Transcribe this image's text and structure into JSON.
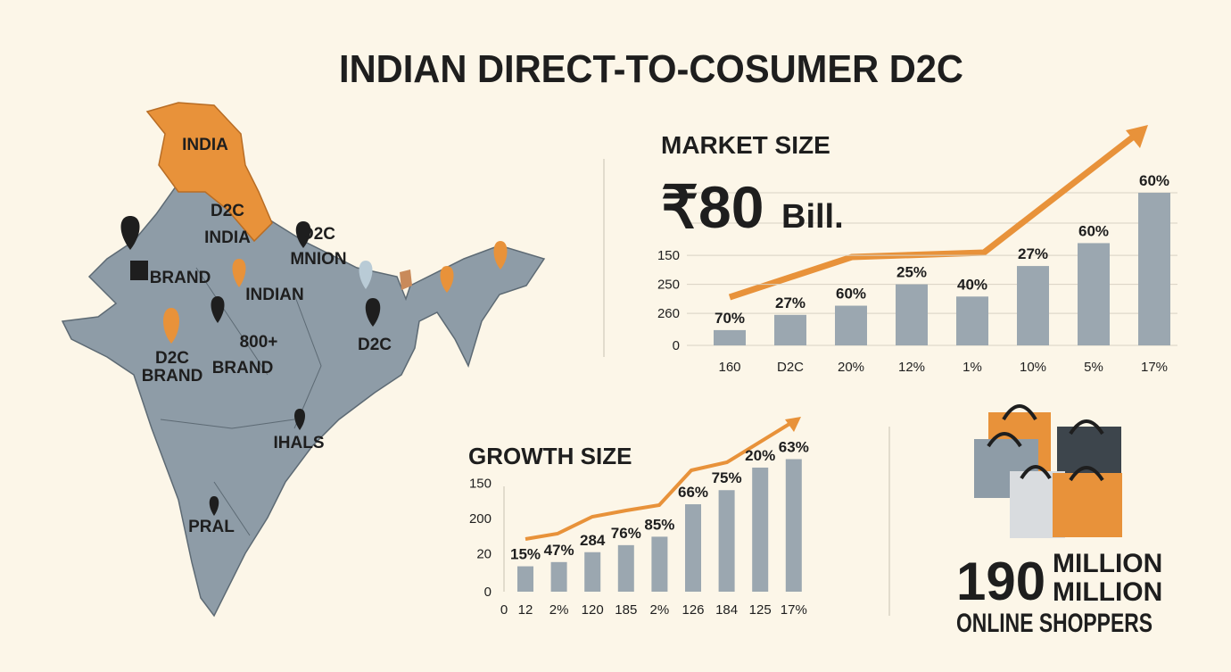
{
  "title": "INDIAN  DIRECT-TO-COSUMER  D2C",
  "map": {
    "labels": [
      "INDIA",
      "D2C",
      "INDIA",
      "BRAND",
      "D2C",
      "MNION",
      "INDIAN",
      "800+",
      "BRAND",
      "D2C",
      "BRAND",
      "D2C",
      "IHALS",
      "PRAL"
    ]
  },
  "chart_data": [
    {
      "type": "bar",
      "title": "MARKET SIZE",
      "headline": "₹80",
      "headline_unit": "Bill.",
      "categories": [
        "160",
        "D2C",
        "20%",
        "12%",
        "1%",
        "10%",
        "5%",
        "17%"
      ],
      "values": [
        10,
        20,
        26,
        40,
        32,
        52,
        67,
        100
      ],
      "bar_labels": [
        "70%",
        "27%",
        "60%",
        "25%",
        "40%",
        "27%",
        "60%",
        "60%"
      ],
      "color": "#9ba7b0",
      "ylim": [
        0,
        100
      ],
      "yticks": [
        {
          "value": 59,
          "label": "150"
        },
        {
          "value": 40,
          "label": "250"
        },
        {
          "value": 21,
          "label": "260"
        },
        0
      ],
      "grid": true
    },
    {
      "type": "bar",
      "title": "GROWTH SIZE",
      "x_origin_label": "0",
      "categories": [
        "12",
        "2%",
        "120",
        "185",
        "2%",
        "126",
        "184",
        "125",
        "17%"
      ],
      "values": [
        18,
        21,
        28,
        33,
        39,
        62,
        72,
        88,
        94
      ],
      "bar_labels": [
        "15%",
        "47%",
        "284",
        "76%",
        "85%",
        "66%",
        "75%",
        "20%",
        "63%"
      ],
      "color": "#9ba7b0",
      "ylim": [
        0,
        100
      ],
      "yticks": [
        {
          "value": 77,
          "label": "150"
        },
        {
          "value": 52,
          "label": "200"
        },
        {
          "value": 27,
          "label": "20"
        },
        0
      ],
      "grid": false
    }
  ],
  "shoppers": {
    "number": "190",
    "lines": [
      "MILLION",
      "MILLION",
      "ONLINE SHOPPERS"
    ]
  }
}
